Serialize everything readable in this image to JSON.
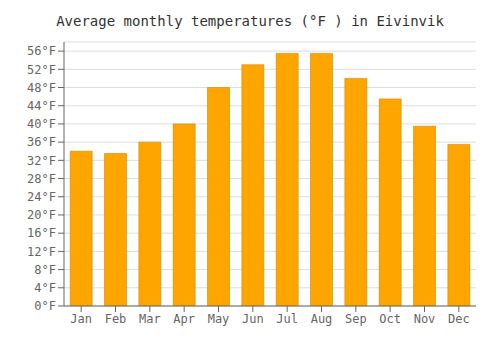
{
  "chart_data": {
    "type": "bar",
    "title": "Average monthly temperatures (°F ) in Eivinvik",
    "categories": [
      "Jan",
      "Feb",
      "Mar",
      "Apr",
      "May",
      "Jun",
      "Jul",
      "Aug",
      "Sep",
      "Oct",
      "Nov",
      "Dec"
    ],
    "values": [
      34,
      33.5,
      36,
      40,
      48,
      53,
      55.5,
      55.5,
      50,
      45.5,
      39.5,
      35.5
    ],
    "color": "#FFA500",
    "ylim": [
      0,
      58
    ],
    "yticks": [
      {
        "value": 0,
        "label": "0°F"
      },
      {
        "value": 4,
        "label": "4°F"
      },
      {
        "value": 8,
        "label": "8°F"
      },
      {
        "value": 12,
        "label": "12°F"
      },
      {
        "value": 16,
        "label": "16°F"
      },
      {
        "value": 20,
        "label": "20°F"
      },
      {
        "value": 24,
        "label": "24°F"
      },
      {
        "value": 28,
        "label": "28°F"
      },
      {
        "value": 32,
        "label": "32°F"
      },
      {
        "value": 36,
        "label": "36°F"
      },
      {
        "value": 40,
        "label": "40°F"
      },
      {
        "value": 44,
        "label": "44°F"
      },
      {
        "value": 48,
        "label": "48°F"
      },
      {
        "value": 52,
        "label": "52°F"
      },
      {
        "value": 56,
        "label": "56°F"
      }
    ],
    "grid": true
  }
}
